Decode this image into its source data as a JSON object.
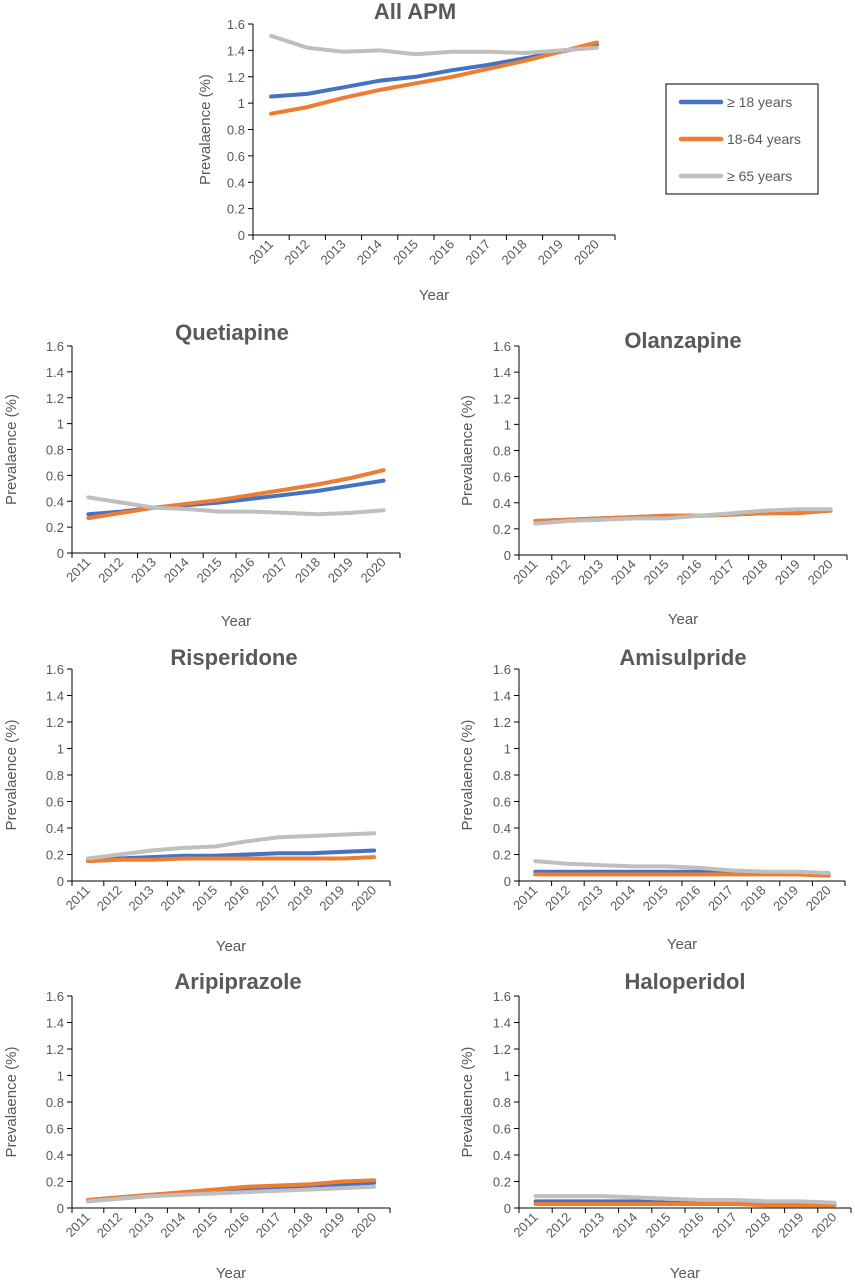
{
  "legend": [
    {
      "name": "≥ 18 years",
      "color": "#4472C4"
    },
    {
      "name": "18-64 years",
      "color": "#ED7D31"
    },
    {
      "name": "≥ 65 years",
      "color": "#BFBFBF"
    }
  ],
  "chart_data": [
    {
      "type": "line",
      "title": "All  APM",
      "xlabel": "Year",
      "ylabel": "Prevalaence (%)",
      "ylim": [
        0,
        1.6
      ],
      "yticks": [
        "0",
        "0.2",
        "0.4",
        "0.6",
        "0.8",
        "1",
        "1.2",
        "1.4",
        "1.6"
      ],
      "x": [
        "2011",
        "2012",
        "2013",
        "2014",
        "2015",
        "2016",
        "2017",
        "2018",
        "2019",
        "2020"
      ],
      "grid": false,
      "legend_position": "right",
      "series": [
        {
          "name": "≥ 18 years",
          "color": "#4472C4",
          "values": [
            1.05,
            1.07,
            1.12,
            1.17,
            1.2,
            1.25,
            1.29,
            1.34,
            1.39,
            1.44
          ]
        },
        {
          "name": "18-64 years",
          "color": "#ED7D31",
          "values": [
            0.92,
            0.97,
            1.04,
            1.1,
            1.15,
            1.2,
            1.26,
            1.32,
            1.39,
            1.46
          ]
        },
        {
          "name": "≥ 65 years",
          "color": "#BFBFBF",
          "values": [
            1.51,
            1.42,
            1.39,
            1.4,
            1.37,
            1.39,
            1.39,
            1.38,
            1.4,
            1.42
          ]
        }
      ]
    },
    {
      "type": "line",
      "title": "Quetiapine",
      "xlabel": "Year",
      "ylabel": "Prevalaence (%)",
      "ylim": [
        0,
        1.6
      ],
      "yticks": [
        "0",
        "0.2",
        "0.4",
        "0.6",
        "0.8",
        "1",
        "1.2",
        "1.4",
        "1.6"
      ],
      "x": [
        "2011",
        "2012",
        "2013",
        "2014",
        "2015",
        "2016",
        "2017",
        "2018",
        "2019",
        "2020"
      ],
      "grid": false,
      "series": [
        {
          "name": "≥ 18 years",
          "color": "#4472C4",
          "values": [
            0.3,
            0.32,
            0.35,
            0.37,
            0.39,
            0.42,
            0.45,
            0.48,
            0.52,
            0.56
          ]
        },
        {
          "name": "18-64 years",
          "color": "#ED7D31",
          "values": [
            0.27,
            0.31,
            0.35,
            0.38,
            0.41,
            0.45,
            0.49,
            0.53,
            0.58,
            0.64
          ]
        },
        {
          "name": "≥ 65 years",
          "color": "#BFBFBF",
          "values": [
            0.43,
            0.39,
            0.35,
            0.34,
            0.32,
            0.32,
            0.31,
            0.3,
            0.31,
            0.33
          ]
        }
      ]
    },
    {
      "type": "line",
      "title": "Olanzapine",
      "xlabel": "Year",
      "ylabel": "Prevalaence (%)",
      "ylim": [
        0,
        1.6
      ],
      "yticks": [
        "0",
        "0.2",
        "0.4",
        "0.6",
        "0.8",
        "1",
        "1.2",
        "1.4",
        "1.6"
      ],
      "x": [
        "2011",
        "2012",
        "2013",
        "2014",
        "2015",
        "2016",
        "2017",
        "2018",
        "2019",
        "2020"
      ],
      "grid": false,
      "series": [
        {
          "name": "≥ 18 years",
          "color": "#4472C4",
          "values": [
            0.26,
            0.27,
            0.28,
            0.29,
            0.3,
            0.3,
            0.31,
            0.32,
            0.33,
            0.34
          ]
        },
        {
          "name": "18-64 years",
          "color": "#ED7D31",
          "values": [
            0.26,
            0.27,
            0.28,
            0.29,
            0.3,
            0.3,
            0.31,
            0.32,
            0.32,
            0.34
          ]
        },
        {
          "name": "≥ 65 years",
          "color": "#BFBFBF",
          "values": [
            0.24,
            0.26,
            0.27,
            0.28,
            0.28,
            0.3,
            0.32,
            0.34,
            0.35,
            0.35
          ]
        }
      ]
    },
    {
      "type": "line",
      "title": "Risperidone",
      "xlabel": "Year",
      "ylabel": "Prevalaence (%)",
      "ylim": [
        0,
        1.6
      ],
      "yticks": [
        "0",
        "0.2",
        "0.4",
        "0.6",
        "0.8",
        "1",
        "1.2",
        "1.4",
        "1.6"
      ],
      "x": [
        "2011",
        "2012",
        "2013",
        "2014",
        "2015",
        "2016",
        "2017",
        "2018",
        "2019",
        "2020"
      ],
      "grid": false,
      "series": [
        {
          "name": "≥ 18 years",
          "color": "#4472C4",
          "values": [
            0.16,
            0.17,
            0.18,
            0.19,
            0.19,
            0.2,
            0.21,
            0.21,
            0.22,
            0.23
          ]
        },
        {
          "name": "18-64 years",
          "color": "#ED7D31",
          "values": [
            0.15,
            0.16,
            0.16,
            0.17,
            0.17,
            0.17,
            0.17,
            0.17,
            0.17,
            0.18
          ]
        },
        {
          "name": "≥ 65 years",
          "color": "#BFBFBF",
          "values": [
            0.17,
            0.2,
            0.23,
            0.25,
            0.26,
            0.3,
            0.33,
            0.34,
            0.35,
            0.36
          ]
        }
      ]
    },
    {
      "type": "line",
      "title": "Amisulpride",
      "xlabel": "Year",
      "ylabel": "Prevalaence (%)",
      "ylim": [
        0,
        1.6
      ],
      "yticks": [
        "0",
        "0.2",
        "0.4",
        "0.6",
        "0.8",
        "1",
        "1.2",
        "1.4",
        "1.6"
      ],
      "x": [
        "2011",
        "2012",
        "2013",
        "2014",
        "2015",
        "2016",
        "2017",
        "2018",
        "2019",
        "2020"
      ],
      "grid": false,
      "series": [
        {
          "name": "≥ 18 years",
          "color": "#4472C4",
          "values": [
            0.07,
            0.07,
            0.07,
            0.07,
            0.07,
            0.07,
            0.06,
            0.06,
            0.05,
            0.05
          ]
        },
        {
          "name": "18-64 years",
          "color": "#ED7D31",
          "values": [
            0.05,
            0.05,
            0.05,
            0.05,
            0.05,
            0.05,
            0.05,
            0.05,
            0.05,
            0.04
          ]
        },
        {
          "name": "≥ 65 years",
          "color": "#BFBFBF",
          "values": [
            0.15,
            0.13,
            0.12,
            0.11,
            0.11,
            0.1,
            0.08,
            0.07,
            0.07,
            0.06
          ]
        }
      ]
    },
    {
      "type": "line",
      "title": "Aripiprazole",
      "xlabel": "Year",
      "ylabel": "Prevalaence (%)",
      "ylim": [
        0,
        1.6
      ],
      "yticks": [
        "0",
        "0.2",
        "0.4",
        "0.6",
        "0.8",
        "1",
        "1.2",
        "1.4",
        "1.6"
      ],
      "x": [
        "2011",
        "2012",
        "2013",
        "2014",
        "2015",
        "2016",
        "2017",
        "2018",
        "2019",
        "2020"
      ],
      "grid": false,
      "series": [
        {
          "name": "≥ 18 years",
          "color": "#4472C4",
          "values": [
            0.06,
            0.08,
            0.1,
            0.11,
            0.13,
            0.14,
            0.15,
            0.17,
            0.18,
            0.19
          ]
        },
        {
          "name": "18-64 years",
          "color": "#ED7D31",
          "values": [
            0.06,
            0.08,
            0.1,
            0.12,
            0.14,
            0.16,
            0.17,
            0.18,
            0.2,
            0.21
          ]
        },
        {
          "name": "≥ 65 years",
          "color": "#BFBFBF",
          "values": [
            0.05,
            0.07,
            0.09,
            0.1,
            0.11,
            0.12,
            0.13,
            0.14,
            0.15,
            0.16
          ]
        }
      ]
    },
    {
      "type": "line",
      "title": "Haloperidol",
      "xlabel": "Year",
      "ylabel": "Prevalaence (%)",
      "ylim": [
        0,
        1.6
      ],
      "yticks": [
        "0",
        "0.2",
        "0.4",
        "0.6",
        "0.8",
        "1",
        "1.2",
        "1.4",
        "1.6"
      ],
      "x": [
        "2011",
        "2012",
        "2013",
        "2014",
        "2015",
        "2016",
        "2017",
        "2018",
        "2019",
        "2020"
      ],
      "grid": false,
      "series": [
        {
          "name": "≥ 18 years",
          "color": "#4472C4",
          "values": [
            0.05,
            0.05,
            0.05,
            0.05,
            0.04,
            0.04,
            0.04,
            0.03,
            0.03,
            0.03
          ]
        },
        {
          "name": "18-64 years",
          "color": "#ED7D31",
          "values": [
            0.03,
            0.03,
            0.03,
            0.03,
            0.03,
            0.03,
            0.03,
            0.02,
            0.02,
            0.02
          ]
        },
        {
          "name": "≥ 65 years",
          "color": "#BFBFBF",
          "values": [
            0.09,
            0.09,
            0.09,
            0.08,
            0.07,
            0.06,
            0.06,
            0.05,
            0.05,
            0.04
          ]
        }
      ]
    }
  ]
}
